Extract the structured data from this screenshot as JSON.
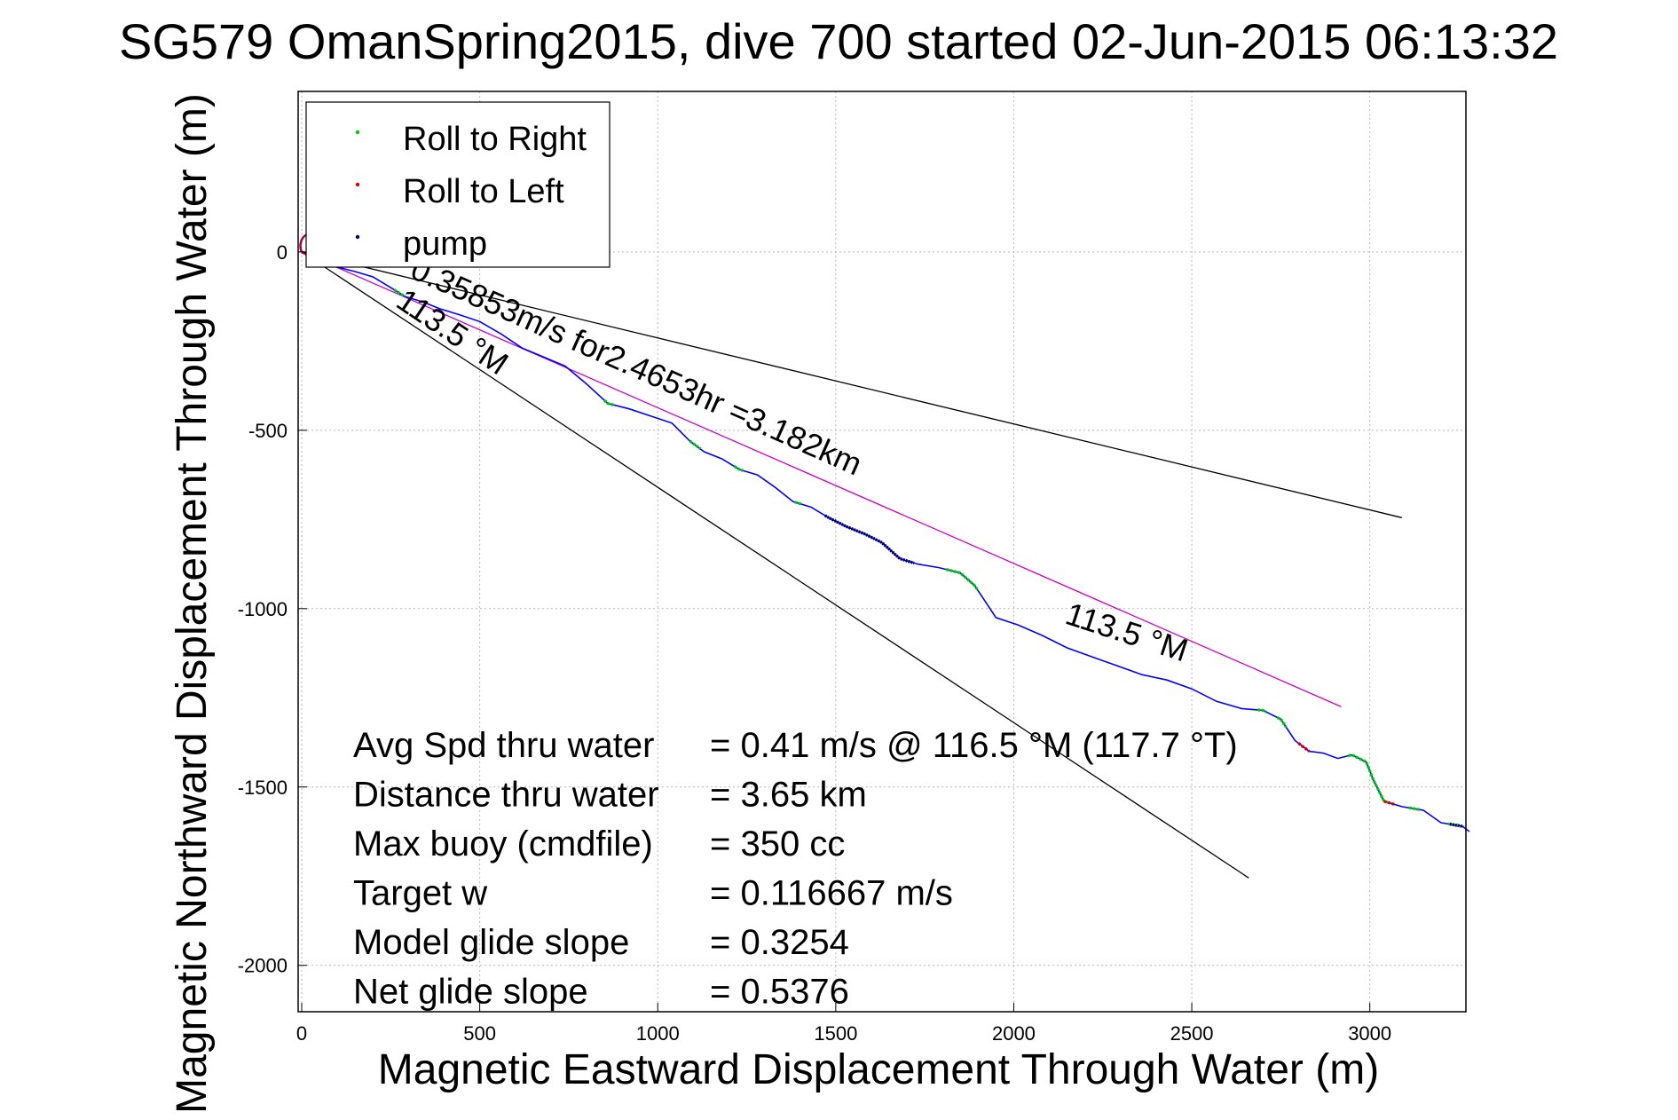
{
  "chart_data": {
    "type": "line",
    "title": "SG579 OmanSpring2015, dive 700 started 02-Jun-2015 06:13:32",
    "xlabel": "Magnetic Eastward Displacement Through Water (m)",
    "ylabel": "Magnetic Northward Displacement Through Water (m)",
    "xlim": [
      -10,
      3270
    ],
    "ylim": [
      -2130,
      450
    ],
    "xticks": [
      0,
      500,
      1000,
      1500,
      2000,
      2500,
      3000
    ],
    "yticks": [
      0,
      -500,
      -1000,
      -1500,
      -2000
    ],
    "xtick_labels": [
      "0",
      "500",
      "1000",
      "1500",
      "2000",
      "2500",
      "3000"
    ],
    "ytick_labels": [
      "0",
      "-500",
      "-1000",
      "-1500",
      "-2000"
    ],
    "grid": true,
    "legend": {
      "placement": "top-left",
      "entries": [
        {
          "name": "Roll to Right",
          "color": "#00cc00"
        },
        {
          "name": "Roll to Left",
          "color": "#dd0000"
        },
        {
          "name": "pump",
          "color": "#000066"
        }
      ]
    },
    "track": {
      "name": "track",
      "color": "#0000ff",
      "points": [
        [
          0,
          0
        ],
        [
          40,
          -20
        ],
        [
          90,
          -40
        ],
        [
          150,
          -55
        ],
        [
          200,
          -70
        ],
        [
          250,
          -100
        ],
        [
          290,
          -125
        ],
        [
          340,
          -140
        ],
        [
          390,
          -160
        ],
        [
          440,
          -175
        ],
        [
          500,
          -195
        ],
        [
          560,
          -230
        ],
        [
          620,
          -270
        ],
        [
          680,
          -295
        ],
        [
          740,
          -320
        ],
        [
          800,
          -370
        ],
        [
          860,
          -425
        ],
        [
          920,
          -440
        ],
        [
          980,
          -460
        ],
        [
          1040,
          -480
        ],
        [
          1090,
          -530
        ],
        [
          1130,
          -560
        ],
        [
          1180,
          -580
        ],
        [
          1230,
          -610
        ],
        [
          1280,
          -625
        ],
        [
          1330,
          -660
        ],
        [
          1380,
          -700
        ],
        [
          1430,
          -715
        ],
        [
          1480,
          -745
        ],
        [
          1530,
          -770
        ],
        [
          1580,
          -790
        ],
        [
          1630,
          -815
        ],
        [
          1680,
          -860
        ],
        [
          1730,
          -875
        ],
        [
          1790,
          -885
        ],
        [
          1850,
          -900
        ],
        [
          1890,
          -935
        ],
        [
          1920,
          -980
        ],
        [
          1950,
          -1025
        ],
        [
          2010,
          -1045
        ],
        [
          2080,
          -1075
        ],
        [
          2150,
          -1110
        ],
        [
          2220,
          -1135
        ],
        [
          2290,
          -1160
        ],
        [
          2360,
          -1185
        ],
        [
          2430,
          -1200
        ],
        [
          2500,
          -1225
        ],
        [
          2570,
          -1260
        ],
        [
          2640,
          -1280
        ],
        [
          2700,
          -1285
        ],
        [
          2750,
          -1310
        ],
        [
          2790,
          -1370
        ],
        [
          2830,
          -1400
        ],
        [
          2870,
          -1405
        ],
        [
          2910,
          -1420
        ],
        [
          2950,
          -1410
        ],
        [
          2990,
          -1430
        ],
        [
          3010,
          -1480
        ],
        [
          3040,
          -1540
        ],
        [
          3090,
          -1555
        ],
        [
          3150,
          -1565
        ],
        [
          3200,
          -1600
        ],
        [
          3260,
          -1610
        ],
        [
          3280,
          -1625
        ]
      ]
    },
    "roll_right_segments": [
      [
        260,
        290
      ],
      [
        850,
        880
      ],
      [
        1090,
        1120
      ],
      [
        1215,
        1240
      ],
      [
        1385,
        1405
      ],
      [
        1810,
        1900
      ],
      [
        2685,
        2710
      ],
      [
        2740,
        2765
      ],
      [
        2940,
        3050
      ],
      [
        3110,
        3140
      ],
      [
        3220,
        3250
      ]
    ],
    "roll_left_segments": [
      [
        0,
        25
      ],
      [
        2800,
        2830
      ],
      [
        3040,
        3070
      ]
    ],
    "pump_segments": [
      [
        1470,
        1720
      ],
      [
        3225,
        3262
      ]
    ],
    "heading_lines": [
      {
        "name": "line-upper",
        "color": "#000000",
        "points": [
          [
            0,
            0
          ],
          [
            3090,
            -745
          ]
        ]
      },
      {
        "name": "line-lower",
        "color": "#000000",
        "points": [
          [
            0,
            0
          ],
          [
            2660,
            -1755
          ]
        ]
      },
      {
        "name": "line-mid",
        "color": "#cc00cc",
        "points": [
          [
            0,
            0
          ],
          [
            2920,
            -1275
          ]
        ]
      }
    ],
    "annotations": [
      {
        "text": "0.35853m/s for2.4653hr =3.182km",
        "x": 300,
        "y": -70,
        "angle": 24
      },
      {
        "text": "113.5 °M",
        "x": 260,
        "y": -150,
        "angle": 34
      },
      {
        "text": "113.5 °M",
        "x": 2140,
        "y": -1040,
        "angle": 18
      }
    ],
    "stats": [
      {
        "label": "Avg Spd thru water",
        "value": "=  0.41 m/s @ 116.5 °M (117.7 °T)"
      },
      {
        "label": "Distance thru water",
        "value": "=  3.65 km"
      },
      {
        "label": "Max buoy (cmdfile)",
        "value": "= 350 cc"
      },
      {
        "label": "Target w",
        "value": "= 0.116667 m/s"
      },
      {
        "label": "Model glide slope",
        "value": "= 0.3254"
      },
      {
        "label": "Net glide slope",
        "value": "= 0.5376"
      }
    ]
  }
}
